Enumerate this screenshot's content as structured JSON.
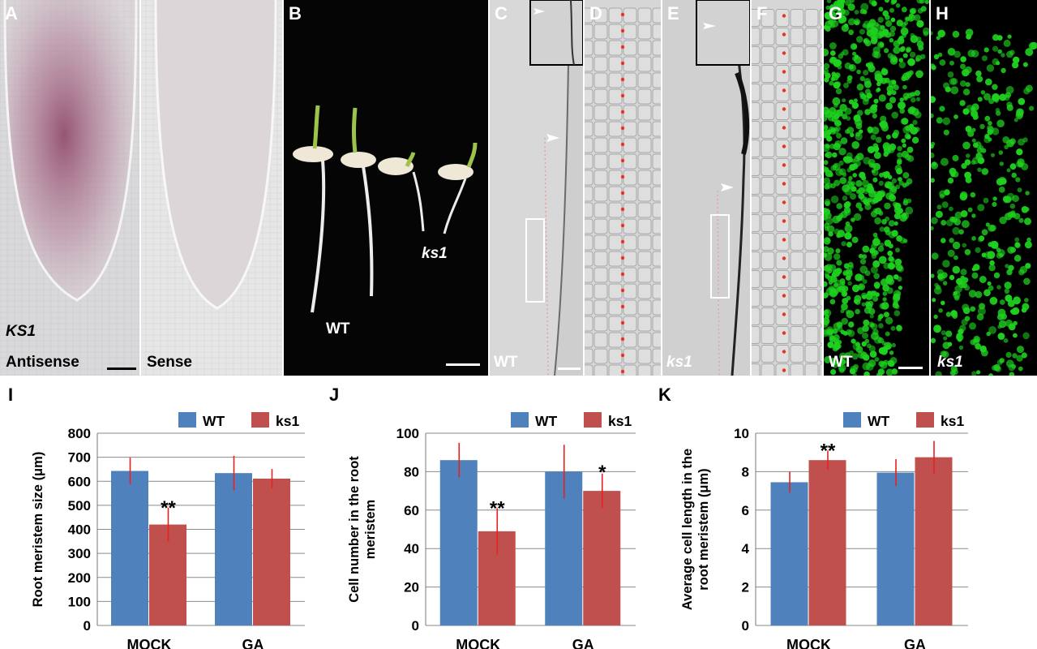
{
  "figure": {
    "panels": {
      "A": {
        "letter": "A",
        "gene_label": "KS1",
        "antisense_label": "Antisense",
        "sense_label": "Sense"
      },
      "B": {
        "letter": "B",
        "wt_label": "WT",
        "mutant_label": "ks1"
      },
      "C": {
        "letter": "C",
        "genotype_label": "WT"
      },
      "D": {
        "letter": "D"
      },
      "E": {
        "letter": "E",
        "genotype_label": "ks1"
      },
      "F": {
        "letter": "F"
      },
      "G": {
        "letter": "G",
        "genotype_label": "WT"
      },
      "H": {
        "letter": "H",
        "genotype_label": "ks1"
      }
    },
    "colors": {
      "wt_bar": "#4f81bd",
      "ks1_bar": "#c0504d",
      "error_bar": "#e8201e",
      "micro_bg_dark": "#0a0a0a",
      "gfp_green": "#1fd11f",
      "dic_gray": "#c9c9c9",
      "insitu_stain": "#a05a78"
    }
  },
  "chart_data": [
    {
      "panel": "I",
      "type": "bar",
      "categories": [
        "MOCK",
        "GA"
      ],
      "series": [
        {
          "name": "WT",
          "values": [
            643,
            634
          ],
          "errors": [
            55,
            72
          ]
        },
        {
          "name": "ks1",
          "values": [
            420,
            611
          ],
          "errors": [
            70,
            40
          ]
        }
      ],
      "ylabel": "Root meristem size (μm)",
      "ylim": [
        0,
        800
      ],
      "yticks": [
        "0",
        "100",
        "200",
        "300",
        "400",
        "500",
        "600",
        "700",
        "800"
      ],
      "significance": [
        {
          "category": "MOCK",
          "series": "ks1",
          "mark": "**"
        }
      ],
      "legend": "top",
      "grid": true
    },
    {
      "panel": "J",
      "type": "bar",
      "categories": [
        "MOCK",
        "GA"
      ],
      "series": [
        {
          "name": "WT",
          "values": [
            86,
            80
          ],
          "errors": [
            9,
            14
          ]
        },
        {
          "name": "ks1",
          "values": [
            49,
            70
          ],
          "errors": [
            12,
            9
          ]
        }
      ],
      "ylabel": "Cell number in the root meristem",
      "ylim": [
        0,
        100
      ],
      "yticks": [
        "0",
        "20",
        "40",
        "60",
        "80",
        "100"
      ],
      "significance": [
        {
          "category": "MOCK",
          "series": "ks1",
          "mark": "**"
        },
        {
          "category": "GA",
          "series": "ks1",
          "mark": "*"
        }
      ],
      "legend": "top",
      "grid": true
    },
    {
      "panel": "K",
      "type": "bar",
      "categories": [
        "MOCK",
        "GA"
      ],
      "series": [
        {
          "name": "WT",
          "values": [
            7.45,
            7.95
          ],
          "errors": [
            0.55,
            0.7
          ]
        },
        {
          "name": "ks1",
          "values": [
            8.6,
            8.75
          ],
          "errors": [
            0.5,
            0.85
          ]
        }
      ],
      "ylabel": "Average cell length in the root meristem (μm)",
      "ylim": [
        0,
        10
      ],
      "yticks": [
        "0",
        "2",
        "4",
        "6",
        "8",
        "10"
      ],
      "significance": [
        {
          "category": "MOCK",
          "series": "ks1",
          "mark": "**"
        }
      ],
      "legend": "top",
      "grid": true
    }
  ]
}
